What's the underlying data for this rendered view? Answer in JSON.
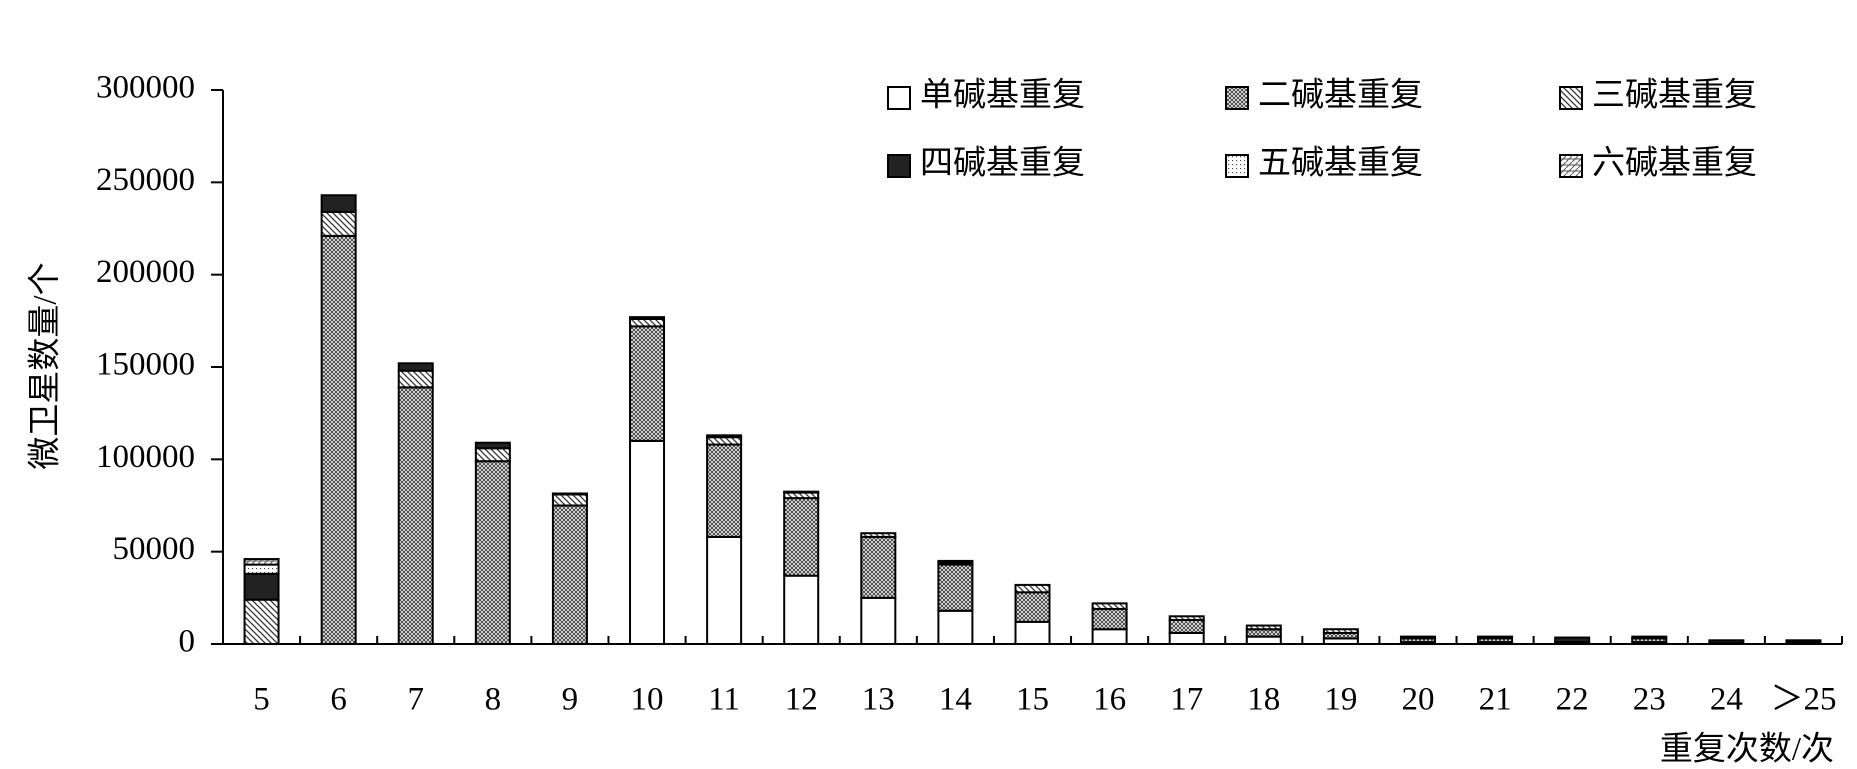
{
  "chart_data": {
    "type": "stacked-bar",
    "x_label": "重复次数/次",
    "y_label": "微卫星数量/个",
    "categories": [
      "5",
      "6",
      "7",
      "8",
      "9",
      "10",
      "11",
      "12",
      "13",
      "14",
      "15",
      "16",
      "17",
      "18",
      "19",
      "20",
      "21",
      "22",
      "23",
      "24",
      "＞25"
    ],
    "series": [
      {
        "name": "单碱基重复",
        "color": "#ffffff",
        "values": [
          0,
          0,
          0,
          0,
          0,
          110000,
          58000,
          37000,
          25000,
          18000,
          12000,
          8000,
          6000,
          4000,
          3000,
          1000,
          1000,
          0,
          1000,
          0,
          0
        ]
      },
      {
        "name": "二碱基重复",
        "color": "#b0b0b0",
        "values": [
          0,
          221000,
          139000,
          99000,
          75000,
          62000,
          50000,
          42000,
          33000,
          25000,
          16000,
          11000,
          7000,
          4000,
          3000,
          2000,
          2000,
          0,
          2000,
          0,
          0
        ]
      },
      {
        "name": "三碱基重复",
        "color": "#d8d8d8",
        "values": [
          24000,
          13000,
          9000,
          7000,
          6000,
          4000,
          4000,
          3000,
          2000,
          1000,
          4000,
          3000,
          2000,
          2000,
          2000,
          1000,
          1000,
          1000,
          1000,
          500,
          1000
        ]
      },
      {
        "name": "四碱基重复",
        "color": "#222222",
        "values": [
          14000,
          9000,
          4000,
          3000,
          500,
          1000,
          1000,
          500,
          0,
          1000,
          0,
          0,
          0,
          0,
          0,
          0,
          0,
          2500,
          0,
          1500,
          1000
        ]
      },
      {
        "name": "五碱基重复",
        "color": "#eeeeee",
        "values": [
          5000,
          0,
          0,
          0,
          0,
          0,
          0,
          0,
          0,
          0,
          0,
          0,
          0,
          0,
          0,
          0,
          0,
          0,
          0,
          0,
          0
        ]
      },
      {
        "name": "六碱基重复",
        "color": "#e0e0e0",
        "values": [
          3000,
          0,
          0,
          0,
          0,
          0,
          0,
          0,
          0,
          0,
          0,
          0,
          0,
          0,
          0,
          0,
          0,
          0,
          0,
          0,
          0
        ]
      }
    ],
    "ylim": [
      0,
      300000
    ],
    "yticks": [
      0,
      50000,
      100000,
      150000,
      200000,
      250000,
      300000
    ],
    "legend": "top-right"
  }
}
